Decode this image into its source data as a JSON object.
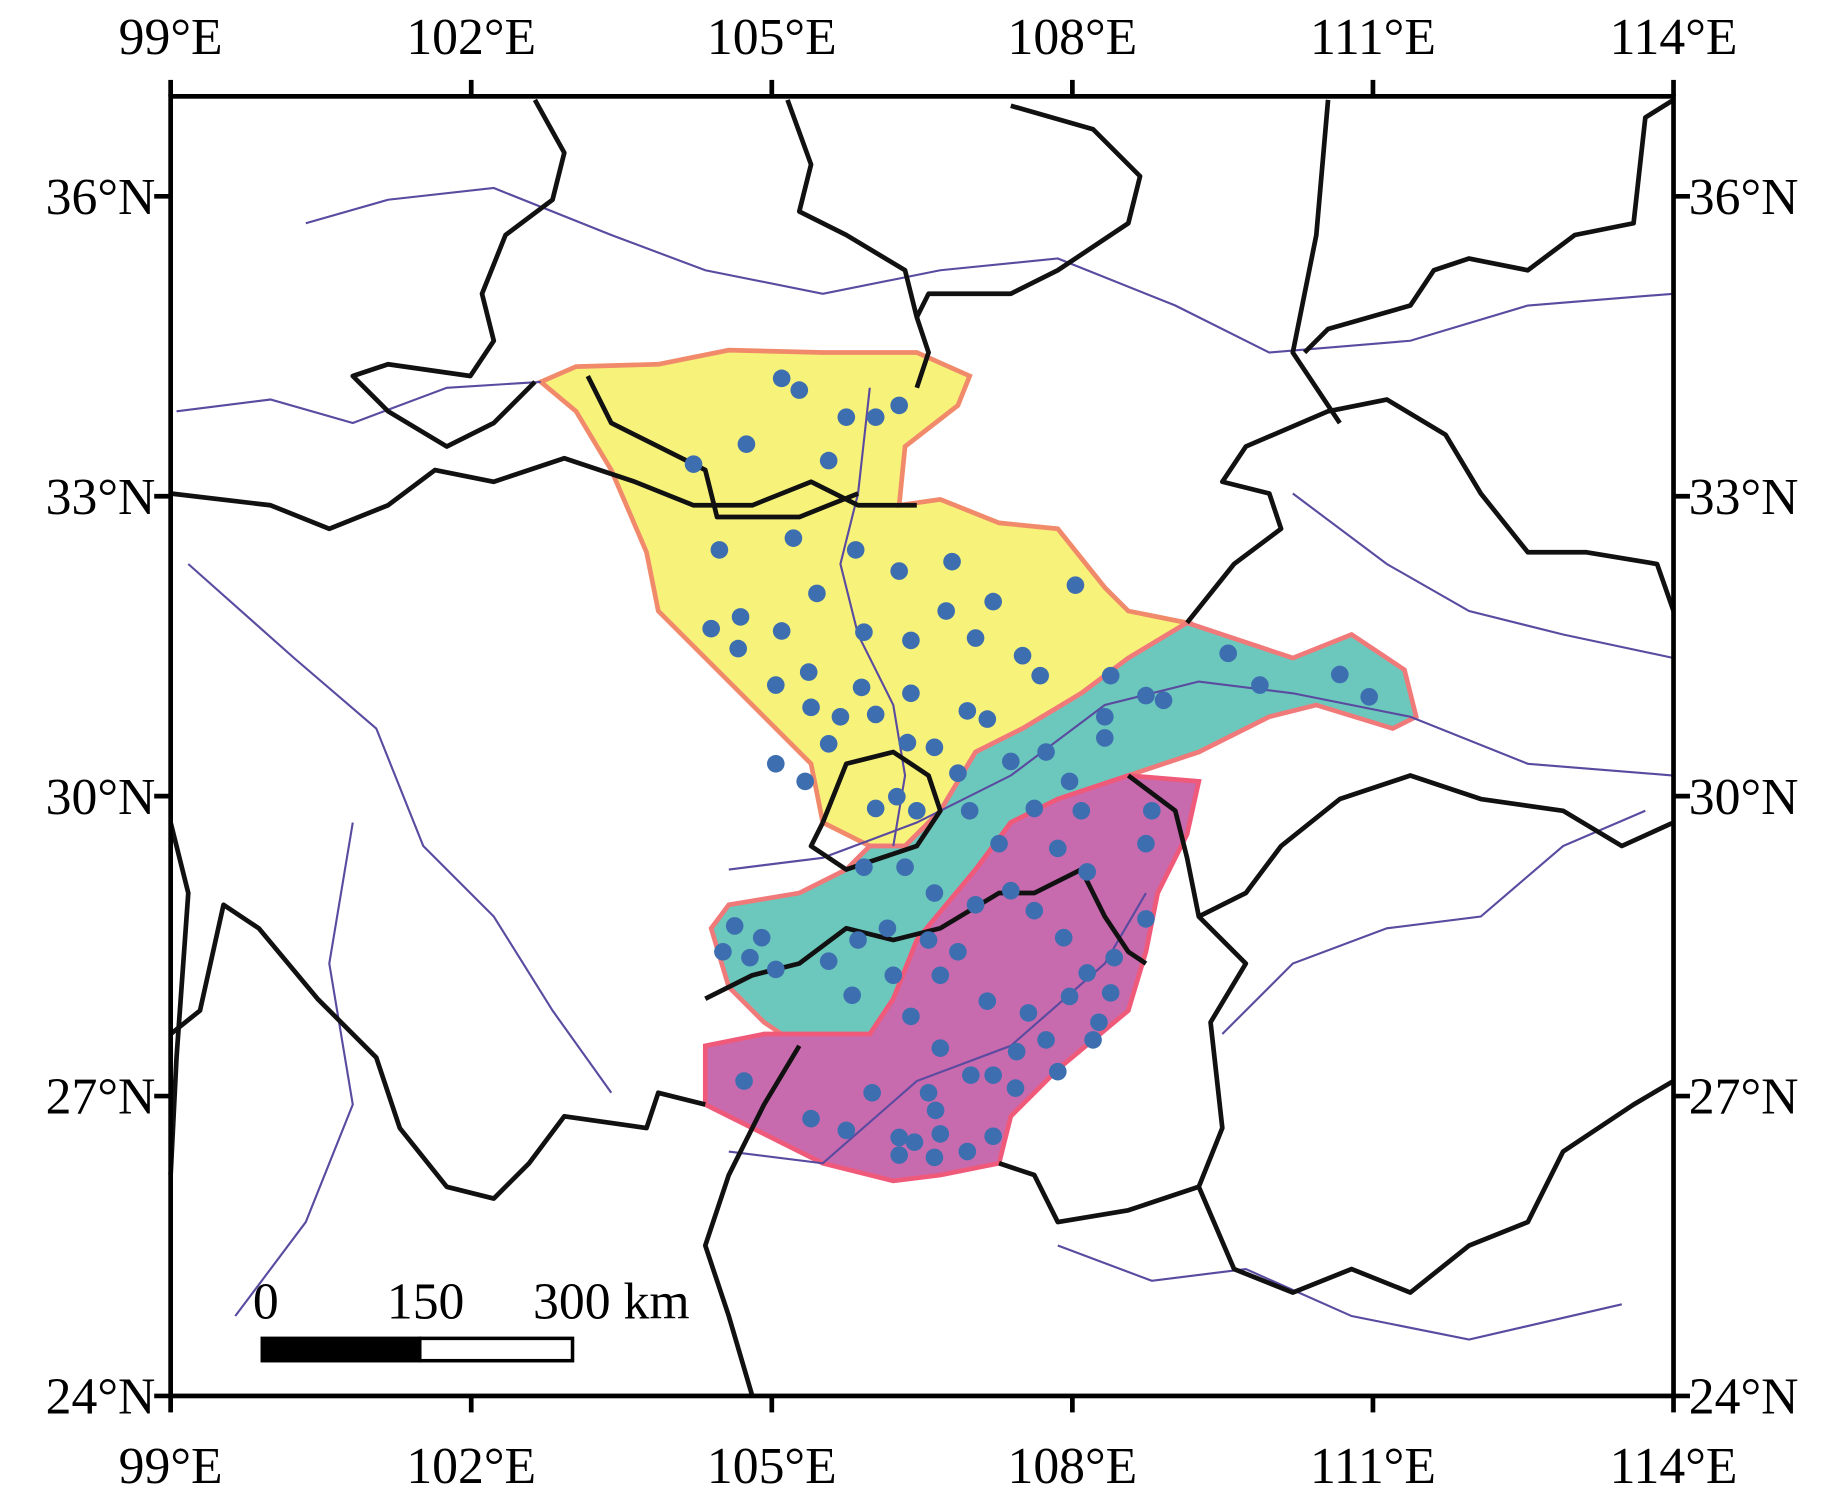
{
  "map": {
    "xlim": [
      99,
      114
    ],
    "ylim": [
      24,
      37
    ],
    "x_ticks": [
      {
        "value": 99,
        "label": "99°E"
      },
      {
        "value": 102,
        "label": "102°E"
      },
      {
        "value": 105,
        "label": "105°E"
      },
      {
        "value": 108,
        "label": "108°E"
      },
      {
        "value": 111,
        "label": "111°E"
      },
      {
        "value": 114,
        "label": "114°E"
      }
    ],
    "y_ticks": [
      {
        "value": 24,
        "label": "24°N"
      },
      {
        "value": 27,
        "label": "27°N"
      },
      {
        "value": 30,
        "label": "30°N"
      },
      {
        "value": 33,
        "label": "33°N"
      },
      {
        "value": 36,
        "label": "36°N"
      }
    ],
    "scale_bar": {
      "labels": [
        "0",
        "150",
        "300 km"
      ]
    }
  }
}
